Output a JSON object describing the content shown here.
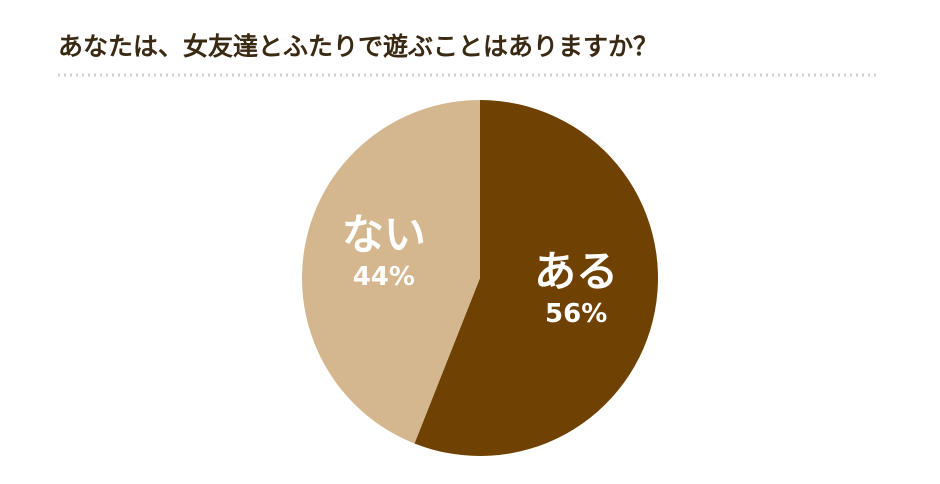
{
  "chart_data": {
    "type": "pie",
    "title": "あなたは、女友達とふたりで遊ぶことはありますか？",
    "categories": [
      "ある",
      "ない"
    ],
    "values": [
      56,
      44
    ],
    "value_labels": [
      "56%",
      "44%"
    ],
    "colors": [
      "#6f4203",
      "#d4b78f"
    ]
  }
}
